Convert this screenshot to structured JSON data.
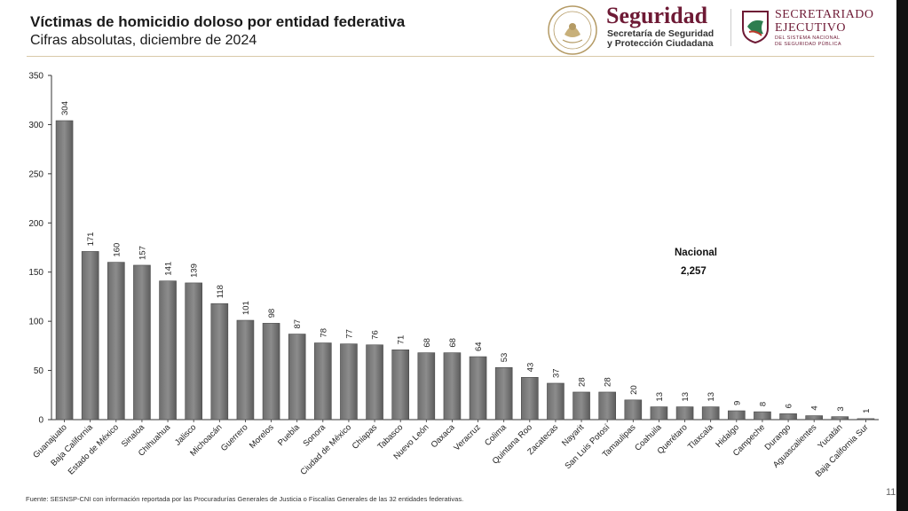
{
  "header": {
    "title": "Víctimas de homicidio doloso por entidad federativa",
    "subtitle": "Cifras absolutas, diciembre de 2024"
  },
  "logos": {
    "seguridad_title": "Seguridad",
    "seguridad_sub_line1": "Secretaría de Seguridad",
    "seguridad_sub_line2": "y Protección Ciudadana",
    "secretariado_line1": "SECRETARIADO",
    "secretariado_line2": "EJECUTIVO",
    "secretariado_sub_line1": "DEL SISTEMA NACIONAL",
    "secretariado_sub_line2": "DE SEGURIDAD PÚBLICA",
    "brand_color": "#6e1a35"
  },
  "chart_data": {
    "type": "bar",
    "title": "Víctimas de homicidio doloso por entidad federativa",
    "xlabel": "",
    "ylabel": "",
    "ylim": [
      0,
      350
    ],
    "yticks": [
      0,
      50,
      100,
      150,
      200,
      250,
      300,
      350
    ],
    "bar_color": "#8c8c8c",
    "categories": [
      "Guanajuato",
      "Baja California",
      "Estado de México",
      "Sinaloa",
      "Chihuahua",
      "Jalisco",
      "Michoacán",
      "Guerrero",
      "Morelos",
      "Puebla",
      "Sonora",
      "Ciudad de México",
      "Chiapas",
      "Tabasco",
      "Nuevo León",
      "Oaxaca",
      "Veracruz",
      "Colima",
      "Quintana Roo",
      "Zacatecas",
      "Nayarit",
      "San Luis Potosí",
      "Tamaulipas",
      "Coahuila",
      "Querétaro",
      "Tlaxcala",
      "Hidalgo",
      "Campeche",
      "Durango",
      "Aguascalientes",
      "Yucatán",
      "Baja California Sur"
    ],
    "values": [
      304,
      171,
      160,
      157,
      141,
      139,
      118,
      101,
      98,
      87,
      78,
      77,
      76,
      71,
      68,
      68,
      64,
      53,
      43,
      37,
      28,
      28,
      20,
      13,
      13,
      13,
      9,
      8,
      6,
      4,
      3,
      1
    ],
    "annotation": {
      "label": "Nacional",
      "value": "2,257"
    }
  },
  "footer": {
    "source": "Fuente: SESNSP-CNI con información reportada por las Procuradurías Generales de Justicia o Fiscalías Generales de las 32 entidades federativas.",
    "page_number": "11"
  }
}
